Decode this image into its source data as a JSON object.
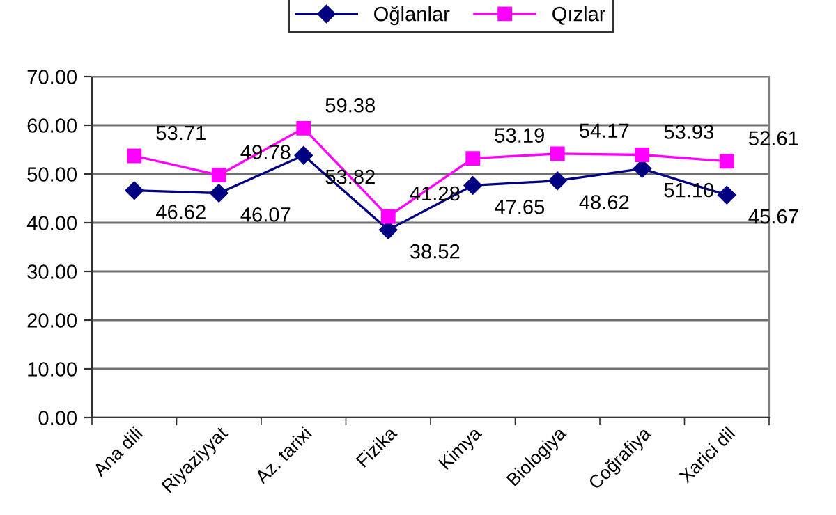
{
  "chart_data": {
    "type": "line",
    "categories": [
      "Ana dili",
      "Riyaziyyat",
      "Az. tarixi",
      "Fizika",
      "Kimya",
      "Biologiya",
      "Coğrafiya",
      "Xarici dil"
    ],
    "series": [
      {
        "name": "Oğlanlar",
        "color": "#000080",
        "marker": "diamond",
        "values": [
          46.62,
          46.07,
          53.82,
          38.52,
          47.65,
          48.62,
          51.1,
          45.67
        ],
        "value_labels": [
          "46.62",
          "46.07",
          "53.82",
          "38.52",
          "47.65",
          "48.62",
          "51.10",
          "45.67"
        ]
      },
      {
        "name": "Qızlar",
        "color": "#ff00ff",
        "marker": "square",
        "values": [
          53.71,
          49.78,
          59.38,
          41.28,
          53.19,
          54.17,
          53.93,
          52.61
        ],
        "value_labels": [
          "53.71",
          "49.78",
          "59.38",
          "41.28",
          "53.19",
          "54.17",
          "53.93",
          "52.61"
        ]
      }
    ],
    "ylim": [
      0,
      70
    ],
    "yticks": [
      {
        "value": 0,
        "label": "0.00"
      },
      {
        "value": 10,
        "label": "10.00"
      },
      {
        "value": 20,
        "label": "20.00"
      },
      {
        "value": 30,
        "label": "30.00"
      },
      {
        "value": 40,
        "label": "40.00"
      },
      {
        "value": 50,
        "label": "50.00"
      },
      {
        "value": 60,
        "label": "60.00"
      },
      {
        "value": 70,
        "label": "70.00"
      }
    ],
    "grid": "y",
    "legend": "top",
    "line_style": "solid"
  }
}
